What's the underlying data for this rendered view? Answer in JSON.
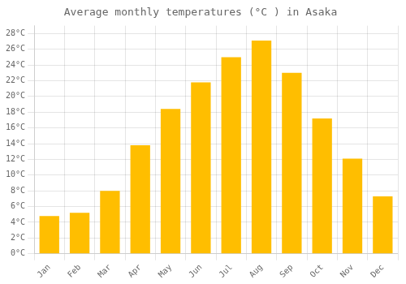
{
  "chart_data": {
    "type": "bar",
    "title": "Average monthly temperatures (°C ) in Asaka",
    "categories": [
      "Jan",
      "Feb",
      "Mar",
      "Apr",
      "May",
      "Jun",
      "Jul",
      "Aug",
      "Sep",
      "Oct",
      "Nov",
      "Dec"
    ],
    "values": [
      4.8,
      5.2,
      8.0,
      13.8,
      18.4,
      21.8,
      25.0,
      27.1,
      23.0,
      17.2,
      12.1,
      7.3
    ],
    "color": "#FFBE00",
    "ylim": [
      0,
      29
    ],
    "yticks": [
      {
        "value": 0,
        "label": "0°C"
      },
      {
        "value": 2,
        "label": "2°C"
      },
      {
        "value": 4,
        "label": "4°C"
      },
      {
        "value": 6,
        "label": "6°C"
      },
      {
        "value": 8,
        "label": "8°C"
      },
      {
        "value": 10,
        "label": "10°C"
      },
      {
        "value": 12,
        "label": "12°C"
      },
      {
        "value": 14,
        "label": "14°C"
      },
      {
        "value": 16,
        "label": "16°C"
      },
      {
        "value": 18,
        "label": "18°C"
      },
      {
        "value": 20,
        "label": "20°C"
      },
      {
        "value": 22,
        "label": "22°C"
      },
      {
        "value": 24,
        "label": "24°C"
      },
      {
        "value": 26,
        "label": "26°C"
      },
      {
        "value": 28,
        "label": "28°C"
      }
    ],
    "grid": true
  }
}
